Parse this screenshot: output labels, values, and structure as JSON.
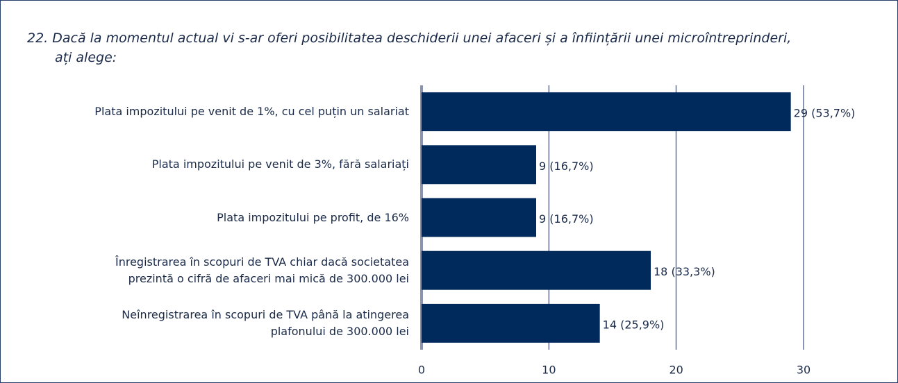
{
  "chart_data": {
    "type": "barh",
    "title": "22. Dacă la momentul actual vi s-ar oferi posibilitatea deschiderii unei afaceri și a înființării unei microîntreprinderi,\nați alege:",
    "categories": [
      "Plata impozitului pe venit de 1%, cu cel puțin un salariat",
      "Plata impozitului pe venit de 3%, fără salariați",
      "Plata impozitului pe profit, de 16%",
      "Înregistrarea în scopuri de TVA chiar dacă societatea\nprezintă o cifră de afaceri mai mică de 300.000 lei",
      "Neînregistrarea în scopuri de TVA până la atingerea\nplafonului de 300.000 lei"
    ],
    "values": [
      29,
      9,
      9,
      18,
      14
    ],
    "value_labels": [
      "29 (53,7%)",
      "9 (16,7%)",
      "9 (16,7%)",
      "18 (33,3%)",
      "14 (25,9%)"
    ],
    "color": "#002a5c",
    "xlim": [
      0,
      30
    ],
    "xticks": [
      0,
      10,
      20,
      30
    ],
    "grid": true
  }
}
